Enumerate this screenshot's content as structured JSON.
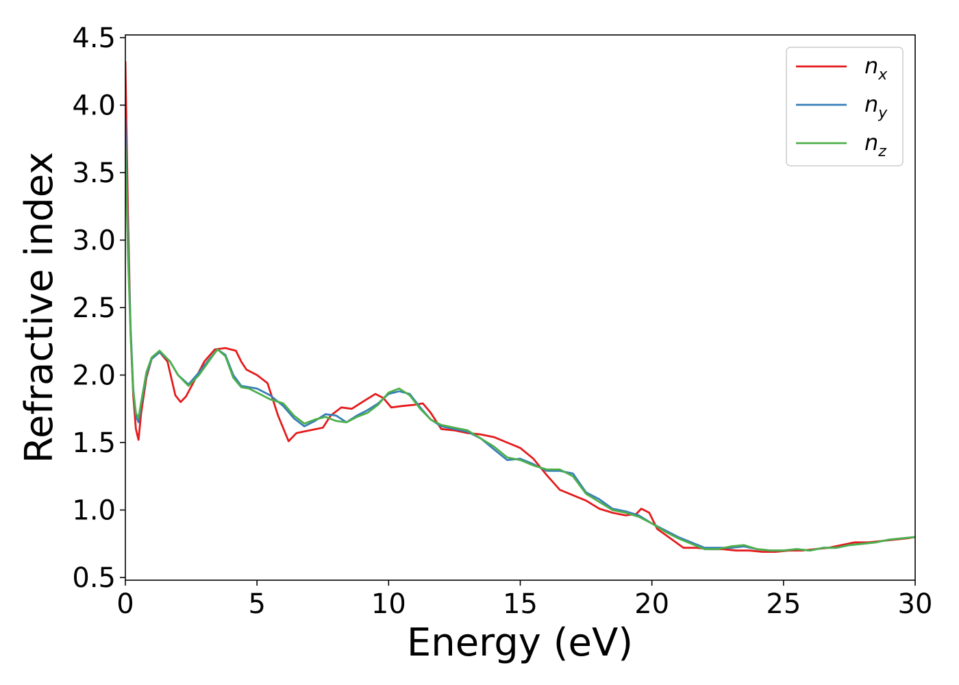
{
  "chart_data": {
    "type": "line",
    "xlabel": "Energy (eV)",
    "ylabel": "Refractive index",
    "xlim": [
      0,
      30
    ],
    "ylim": [
      0.48,
      4.52
    ],
    "xticks": [
      0,
      5,
      10,
      15,
      20,
      25,
      30
    ],
    "xtick_labels": [
      "0",
      "5",
      "10",
      "15",
      "20",
      "25",
      "30"
    ],
    "yticks": [
      0.5,
      1.0,
      1.5,
      2.0,
      2.5,
      3.0,
      3.5,
      4.0,
      4.5
    ],
    "ytick_labels": [
      "0.5",
      "1.0",
      "1.5",
      "2.0",
      "2.5",
      "3.0",
      "3.5",
      "4.0",
      "4.5"
    ],
    "grid": false,
    "legend_position": "top-right",
    "series": [
      {
        "name": "n",
        "sub": "x",
        "color": "#e41a1c",
        "x": [
          0.0,
          0.1,
          0.2,
          0.3,
          0.4,
          0.5,
          0.6,
          0.8,
          1.0,
          1.3,
          1.6,
          1.9,
          2.1,
          2.3,
          2.6,
          3.0,
          3.4,
          3.8,
          4.2,
          4.4,
          4.6,
          5.0,
          5.4,
          5.8,
          6.2,
          6.5,
          7.0,
          7.5,
          7.8,
          8.2,
          8.6,
          9.0,
          9.5,
          9.8,
          10.1,
          10.5,
          11.0,
          11.3,
          11.6,
          12.0,
          12.5,
          13.0,
          13.5,
          14.0,
          14.5,
          15.0,
          15.5,
          16.0,
          16.5,
          17.0,
          17.5,
          18.0,
          18.5,
          19.0,
          19.4,
          19.6,
          19.9,
          20.2,
          20.7,
          21.2,
          21.7,
          22.2,
          22.7,
          23.2,
          23.7,
          24.2,
          24.7,
          25.2,
          25.7,
          26.2,
          26.7,
          27.2,
          27.7,
          28.2,
          28.7,
          29.2,
          29.7,
          30.0
        ],
        "values": [
          4.32,
          3.2,
          2.3,
          1.85,
          1.6,
          1.52,
          1.72,
          1.98,
          2.12,
          2.17,
          2.1,
          1.85,
          1.8,
          1.84,
          1.95,
          2.1,
          2.19,
          2.2,
          2.18,
          2.1,
          2.04,
          2.0,
          1.94,
          1.7,
          1.51,
          1.57,
          1.59,
          1.61,
          1.7,
          1.76,
          1.75,
          1.8,
          1.86,
          1.83,
          1.76,
          1.77,
          1.78,
          1.79,
          1.72,
          1.6,
          1.59,
          1.57,
          1.56,
          1.54,
          1.5,
          1.46,
          1.38,
          1.26,
          1.15,
          1.11,
          1.07,
          1.01,
          0.98,
          0.96,
          0.97,
          1.01,
          0.98,
          0.86,
          0.79,
          0.72,
          0.72,
          0.71,
          0.71,
          0.7,
          0.7,
          0.69,
          0.69,
          0.7,
          0.7,
          0.71,
          0.72,
          0.74,
          0.76,
          0.76,
          0.77,
          0.78,
          0.79,
          0.8
        ]
      },
      {
        "name": "n",
        "sub": "y",
        "color": "#377eb8",
        "x": [
          0.0,
          0.1,
          0.2,
          0.3,
          0.4,
          0.5,
          0.6,
          0.8,
          1.0,
          1.3,
          1.7,
          2.0,
          2.4,
          2.8,
          3.2,
          3.5,
          3.8,
          4.1,
          4.4,
          4.7,
          5.0,
          5.5,
          6.0,
          6.4,
          6.8,
          7.2,
          7.6,
          8.0,
          8.4,
          8.8,
          9.2,
          9.6,
          10.0,
          10.4,
          10.8,
          11.2,
          11.6,
          12.0,
          12.5,
          13.0,
          13.5,
          14.0,
          14.5,
          15.0,
          15.5,
          16.0,
          16.5,
          17.0,
          17.5,
          18.0,
          18.5,
          19.0,
          19.5,
          20.0,
          20.5,
          21.0,
          21.5,
          22.0,
          22.5,
          23.0,
          23.5,
          24.0,
          24.5,
          25.0,
          25.5,
          26.0,
          26.5,
          27.0,
          27.5,
          28.0,
          28.5,
          29.0,
          29.5,
          30.0
        ],
        "values": [
          3.9,
          3.0,
          2.35,
          1.9,
          1.7,
          1.65,
          1.78,
          2.0,
          2.12,
          2.17,
          2.1,
          2.0,
          1.93,
          2.02,
          2.12,
          2.19,
          2.15,
          2.0,
          1.92,
          1.91,
          1.9,
          1.85,
          1.77,
          1.68,
          1.62,
          1.66,
          1.71,
          1.7,
          1.65,
          1.7,
          1.74,
          1.79,
          1.86,
          1.88,
          1.86,
          1.76,
          1.67,
          1.62,
          1.6,
          1.58,
          1.53,
          1.45,
          1.37,
          1.38,
          1.34,
          1.29,
          1.29,
          1.27,
          1.13,
          1.08,
          1.01,
          0.99,
          0.96,
          0.9,
          0.85,
          0.8,
          0.76,
          0.72,
          0.72,
          0.72,
          0.73,
          0.71,
          0.7,
          0.7,
          0.71,
          0.7,
          0.72,
          0.72,
          0.74,
          0.75,
          0.76,
          0.78,
          0.79,
          0.8
        ]
      },
      {
        "name": "n",
        "sub": "z",
        "color": "#4daf4a",
        "x": [
          0.0,
          0.1,
          0.2,
          0.3,
          0.4,
          0.5,
          0.6,
          0.8,
          1.0,
          1.3,
          1.7,
          2.0,
          2.4,
          2.8,
          3.2,
          3.5,
          3.8,
          4.1,
          4.4,
          4.7,
          5.0,
          5.5,
          6.0,
          6.4,
          6.8,
          7.2,
          7.6,
          8.0,
          8.4,
          8.8,
          9.2,
          9.6,
          10.0,
          10.4,
          10.8,
          11.2,
          11.6,
          12.0,
          12.5,
          13.0,
          13.5,
          14.0,
          14.5,
          15.0,
          15.5,
          16.0,
          16.5,
          17.0,
          17.5,
          18.0,
          18.5,
          19.0,
          19.5,
          20.0,
          20.5,
          21.0,
          21.5,
          22.0,
          22.5,
          23.0,
          23.5,
          24.0,
          24.5,
          25.0,
          25.5,
          26.0,
          26.5,
          27.0,
          27.5,
          28.0,
          28.5,
          29.0,
          29.5,
          30.0
        ],
        "values": [
          3.7,
          2.9,
          2.3,
          1.88,
          1.72,
          1.68,
          1.8,
          2.02,
          2.13,
          2.18,
          2.1,
          2.0,
          1.92,
          2.0,
          2.11,
          2.19,
          2.14,
          1.98,
          1.91,
          1.9,
          1.87,
          1.82,
          1.79,
          1.7,
          1.64,
          1.67,
          1.69,
          1.66,
          1.65,
          1.69,
          1.72,
          1.78,
          1.87,
          1.9,
          1.85,
          1.75,
          1.67,
          1.63,
          1.61,
          1.59,
          1.53,
          1.47,
          1.39,
          1.37,
          1.33,
          1.3,
          1.3,
          1.25,
          1.12,
          1.06,
          1.0,
          0.98,
          0.95,
          0.9,
          0.84,
          0.79,
          0.75,
          0.71,
          0.71,
          0.73,
          0.74,
          0.71,
          0.7,
          0.7,
          0.71,
          0.7,
          0.72,
          0.72,
          0.74,
          0.75,
          0.76,
          0.78,
          0.79,
          0.8
        ]
      }
    ]
  }
}
